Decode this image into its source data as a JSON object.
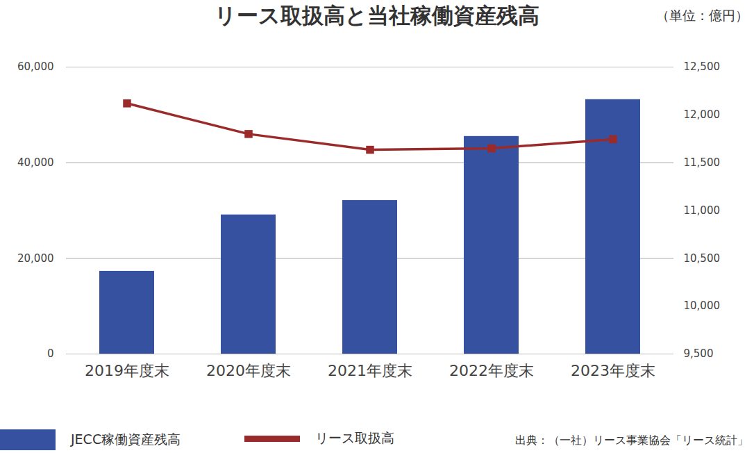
{
  "chart_data": {
    "type": "bar",
    "title": "リース取扱高と当社稼働資産残高",
    "subtitle": "（単位：億円）",
    "source": "出典：（一社）リース事業協会「リース統計」",
    "categories": [
      "2019年度末",
      "2020年度末",
      "2021年度末",
      "2022年度末",
      "2023年度末"
    ],
    "series": [
      {
        "name": "JECC稼働資産残高",
        "type": "bar",
        "color": "#3551a0",
        "values": [
          17300,
          29100,
          32100,
          45500,
          53200
        ]
      },
      {
        "name": "リース取扱高",
        "type": "line",
        "axis": "y2",
        "color": "#9b2b2b",
        "marker": "square",
        "values": [
          12120,
          11800,
          11635,
          11650,
          11745
        ]
      }
    ],
    "ylim": [
      0,
      60000
    ],
    "yticks": [
      0,
      {
        "value": 20000,
        "label": "20,000"
      },
      {
        "value": 40000,
        "label": "40,000"
      },
      {
        "value": 60000,
        "label": "60,000"
      }
    ],
    "y2lim": [
      9500,
      12500
    ],
    "y2ticks": [
      {
        "value": 9500,
        "label": "9,500"
      },
      {
        "value": 10000,
        "label": "10,000"
      },
      {
        "value": 10500,
        "label": "10,500"
      },
      {
        "value": 11000,
        "label": "11,000"
      },
      {
        "value": 11500,
        "label": "11,500"
      },
      {
        "value": 12000,
        "label": "12,000"
      },
      {
        "value": 12500,
        "label": "12,500"
      }
    ],
    "grid": true,
    "legend": "bottom"
  }
}
